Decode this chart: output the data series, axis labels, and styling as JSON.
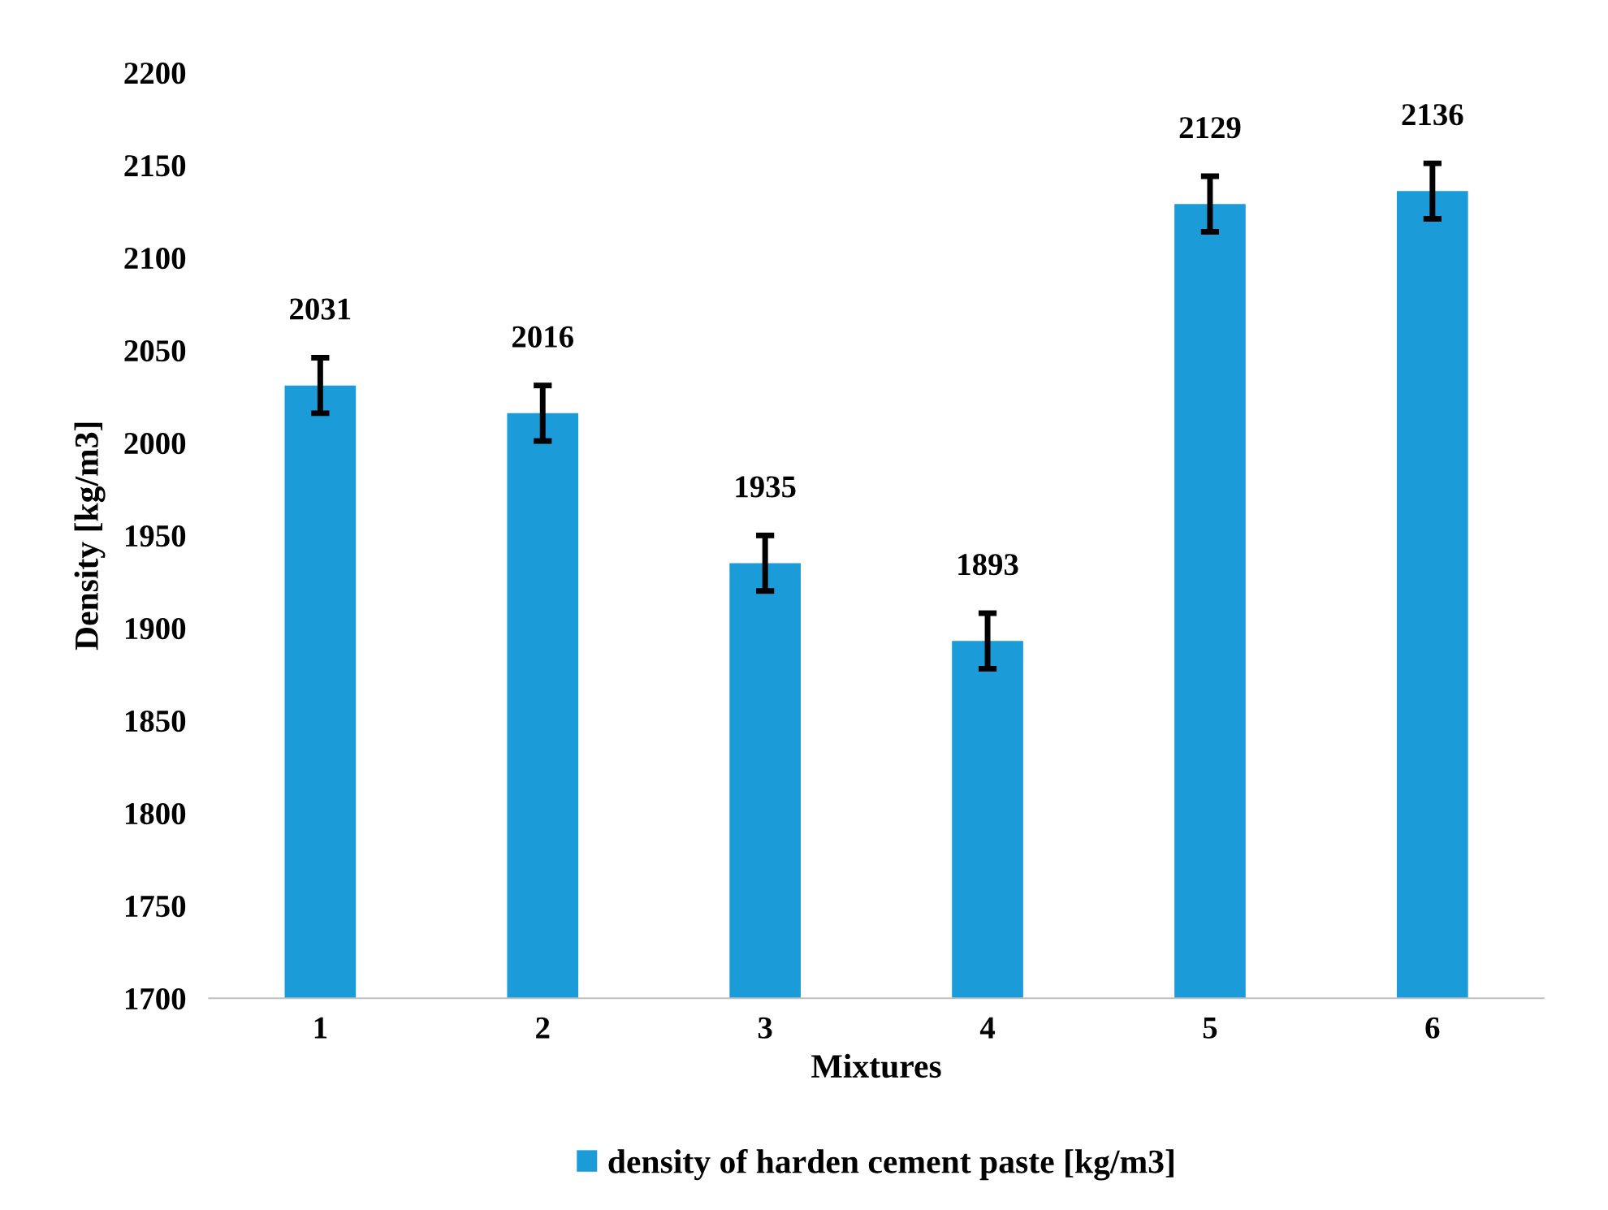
{
  "chart_data": {
    "type": "bar",
    "xlabel": "Mixtures",
    "ylabel": "Density [kg/m3]",
    "categories": [
      "1",
      "2",
      "3",
      "4",
      "5",
      "6"
    ],
    "series": [
      {
        "name": "density of harden cement paste [kg/m3]",
        "color": "#1b9bd7",
        "values": [
          2031,
          2016,
          1935,
          1893,
          2129,
          2136
        ],
        "errors": [
          15,
          15,
          15,
          15,
          15,
          15
        ]
      }
    ],
    "ylim": [
      1700,
      2200
    ],
    "yticks": [
      1700,
      1750,
      1800,
      1850,
      1900,
      1950,
      2000,
      2050,
      2100,
      2150,
      2200
    ],
    "data_labels": true,
    "grid": false,
    "legend": "bottom"
  }
}
